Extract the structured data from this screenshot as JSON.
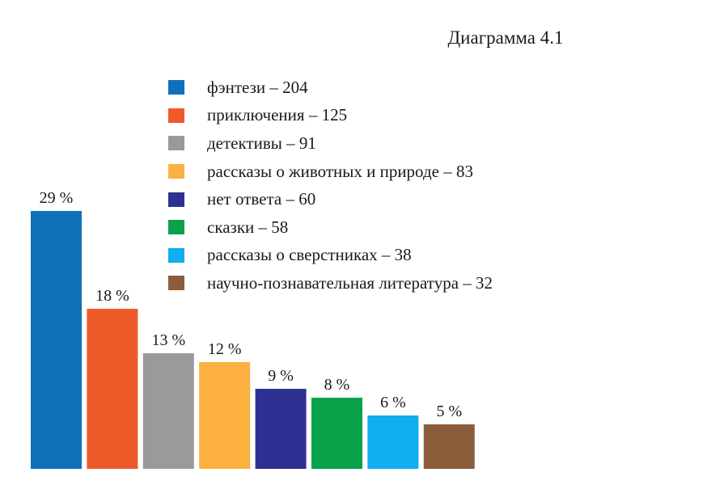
{
  "chart_data": {
    "type": "bar",
    "title": "Диаграмма 4.1",
    "categories": [
      "фэнтези – 204",
      "приключения – 125",
      "детективы – 91",
      "рассказы о животных и природе – 83",
      "нет ответа – 60",
      "сказки – 58",
      "рассказы о сверстниках – 38",
      "научно-познавательная литература – 32"
    ],
    "values": [
      29,
      18,
      13,
      12,
      9,
      8,
      6,
      5
    ],
    "data_labels": [
      "29 %",
      "18 %",
      "13 %",
      "12 %",
      "9 %",
      "8 %",
      "6 %",
      "5 %"
    ],
    "colors": [
      "#0f71b8",
      "#ef5a2b",
      "#9a9a9c",
      "#fbb040",
      "#2e3192",
      "#0aa14b",
      "#0eaeef",
      "#8b5d3b"
    ],
    "ylim": [
      0,
      29
    ],
    "grid": false,
    "legend_position": "top-right"
  }
}
